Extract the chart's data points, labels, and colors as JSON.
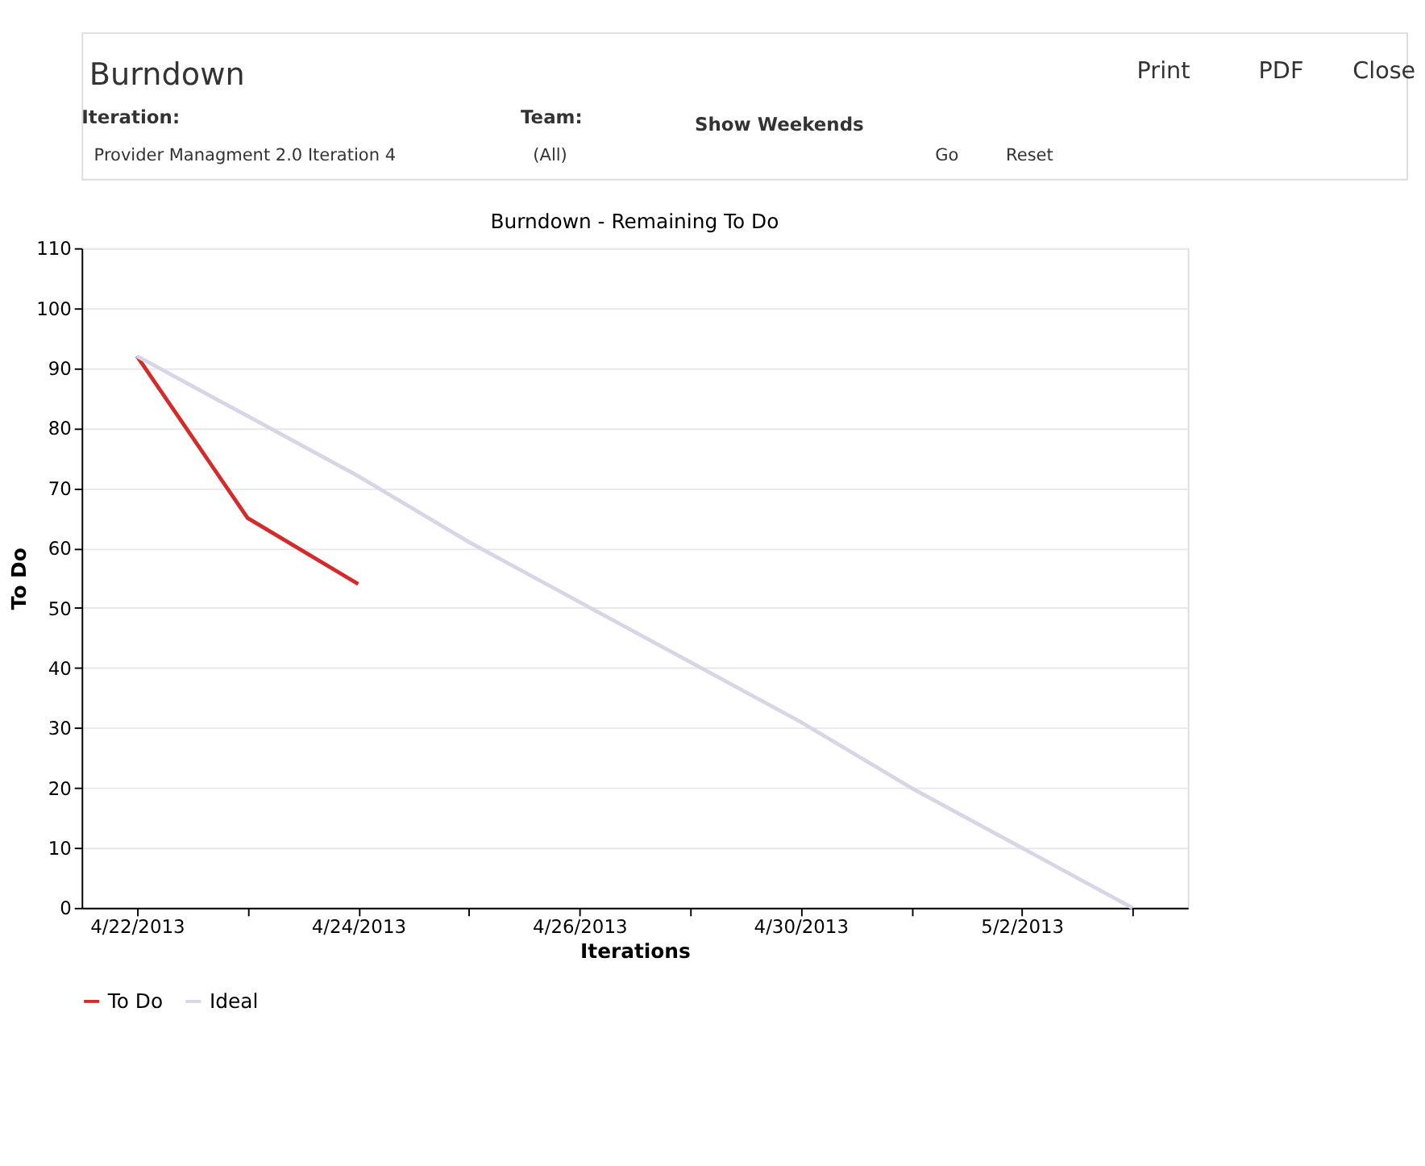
{
  "chart_data": {
    "type": "line",
    "title": "Burndown - Remaining To Do",
    "xlabel": "Iterations",
    "ylabel": "To Do",
    "categories": [
      "4/22/2013",
      null,
      "4/24/2013",
      null,
      "4/26/2013",
      null,
      "4/30/2013",
      null,
      "5/2/2013",
      null
    ],
    "series": [
      {
        "name": "To Do",
        "color": "#d42a2a",
        "values": [
          92,
          65,
          54,
          null,
          null,
          null,
          null,
          null,
          null,
          null
        ]
      },
      {
        "name": "Ideal",
        "color": "#d6d6e6",
        "values": [
          92,
          82,
          72,
          61,
          51,
          41,
          31,
          20,
          10,
          0
        ]
      }
    ],
    "ylim": [
      0,
      110
    ],
    "yticks": [
      0,
      10,
      20,
      30,
      40,
      50,
      60,
      70,
      80,
      90,
      100,
      110
    ],
    "grid": "y",
    "legend": "bottom",
    "marker": "none",
    "line_style": "solid",
    "annotations": [
      "Burndown",
      "Print",
      "PDF",
      "Close",
      "Iteration:",
      "Provider Managment 2.0 Iteration 4",
      "Team:",
      "(All)",
      "Show Weekends",
      "Go",
      "Reset"
    ]
  }
}
